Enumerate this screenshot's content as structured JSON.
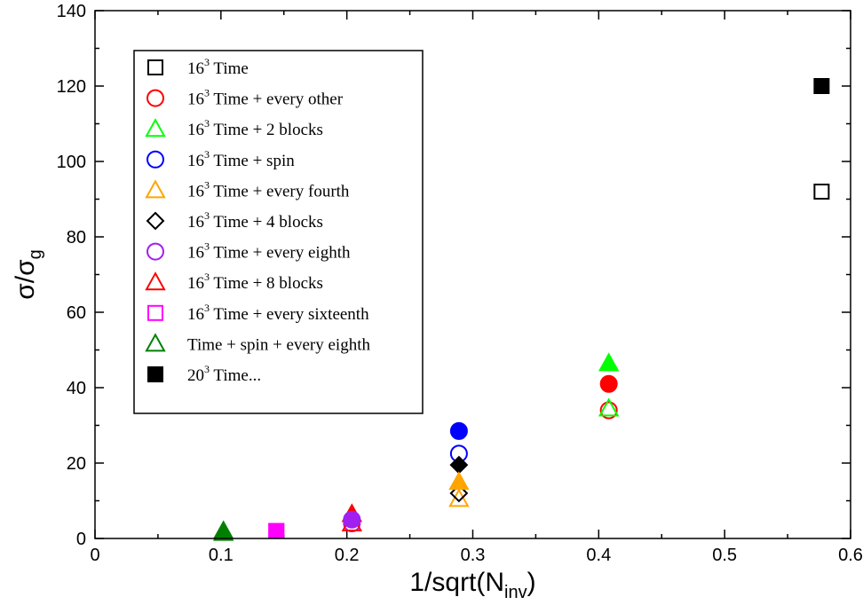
{
  "chart_data": {
    "type": "scatter",
    "title": "",
    "xlabel": "1/sqrt(N_inv)",
    "ylabel": "σ/σ_g",
    "xlim": [
      0,
      0.6
    ],
    "ylim": [
      0,
      140
    ],
    "xticks": [
      0,
      0.1,
      0.2,
      0.3,
      0.4,
      0.5,
      0.6
    ],
    "yticks": [
      0,
      20,
      40,
      60,
      80,
      100,
      120,
      140
    ],
    "xtick_labels": [
      "0",
      "0.1",
      "0.2",
      "0.3",
      "0.4",
      "0.5",
      "0.6"
    ],
    "ytick_labels": [
      "0",
      "20",
      "40",
      "60",
      "80",
      "100",
      "120",
      "140"
    ],
    "xlabel_parts": {
      "main": "1/sqrt(N",
      "sub": "inv",
      "end": ")"
    },
    "ylabel_parts": {
      "main": "σ/σ",
      "sub": "g"
    },
    "grid": false,
    "legend_position": "top-left",
    "legend": [
      {
        "pre": "16",
        "sup": "3",
        "post": " Time",
        "marker": "square",
        "color": "#000000"
      },
      {
        "pre": "16",
        "sup": "3",
        "post": " Time + every other",
        "marker": "circle",
        "color": "#ff0000"
      },
      {
        "pre": "16",
        "sup": "3",
        "post": " Time + 2 blocks",
        "marker": "triangle",
        "color": "#00ff00"
      },
      {
        "pre": "16",
        "sup": "3",
        "post": " Time + spin",
        "marker": "circle",
        "color": "#0000ff"
      },
      {
        "pre": "16",
        "sup": "3",
        "post": " Time + every fourth",
        "marker": "triangle",
        "color": "#ffa500"
      },
      {
        "pre": "16",
        "sup": "3",
        "post": " Time + 4 blocks",
        "marker": "diamond",
        "color": "#000000"
      },
      {
        "pre": "16",
        "sup": "3",
        "post": " Time + every eighth",
        "marker": "circle",
        "color": "#a020f0"
      },
      {
        "pre": "16",
        "sup": "3",
        "post": " Time + 8 blocks",
        "marker": "triangle",
        "color": "#ff0000"
      },
      {
        "pre": "16",
        "sup": "3",
        "post": " Time + every sixteenth",
        "marker": "square",
        "color": "#ff00ff"
      },
      {
        "pre": "",
        "sup": "",
        "post": "Time + spin + every eighth",
        "marker": "triangle",
        "color": "#008000"
      },
      {
        "pre": "20",
        "sup": "3",
        "post": " Time...",
        "marker": "square-filled",
        "color": "#000000"
      }
    ],
    "series": [
      {
        "name": "16^3 Time",
        "marker": "square",
        "color": "#000000",
        "filled": false,
        "points": [
          [
            0.577,
            92
          ]
        ]
      },
      {
        "name": "16^3 Time + every other",
        "marker": "circle",
        "color": "#ff0000",
        "filled": false,
        "points": [
          [
            0.408,
            34
          ]
        ]
      },
      {
        "name": "16^3 Time + 2 blocks",
        "marker": "triangle",
        "color": "#00ff00",
        "filled": false,
        "points": [
          [
            0.408,
            34.5
          ]
        ]
      },
      {
        "name": "16^3 Time + spin",
        "marker": "circle",
        "color": "#0000ff",
        "filled": false,
        "points": [
          [
            0.289,
            22.5
          ]
        ]
      },
      {
        "name": "16^3 Time + every fourth",
        "marker": "triangle",
        "color": "#ffa500",
        "filled": false,
        "points": [
          [
            0.289,
            10.5
          ]
        ]
      },
      {
        "name": "16^3 Time + 4 blocks",
        "marker": "diamond",
        "color": "#000000",
        "filled": false,
        "points": [
          [
            0.289,
            12
          ]
        ]
      },
      {
        "name": "16^3 Time + every eighth",
        "marker": "circle",
        "color": "#a020f0",
        "filled": false,
        "points": [
          [
            0.204,
            4
          ]
        ]
      },
      {
        "name": "16^3 Time + 8 blocks",
        "marker": "triangle",
        "color": "#ff0000",
        "filled": false,
        "points": [
          [
            0.204,
            4
          ]
        ]
      },
      {
        "name": "16^3 Time + every sixteenth",
        "marker": "square",
        "color": "#ff00ff",
        "filled": false,
        "points": [
          [
            0.144,
            2
          ]
        ]
      },
      {
        "name": "Time + spin + every eighth",
        "marker": "triangle",
        "color": "#008000",
        "filled": false,
        "points": [
          [
            0.102,
            1.5
          ]
        ]
      },
      {
        "name": "20^3 Time (filled square)",
        "marker": "square",
        "color": "#000000",
        "filled": true,
        "points": [
          [
            0.577,
            120
          ]
        ]
      },
      {
        "name": "every other (filled)",
        "marker": "circle",
        "color": "#ff0000",
        "filled": true,
        "points": [
          [
            0.408,
            41
          ]
        ]
      },
      {
        "name": "2 blocks (filled)",
        "marker": "triangle",
        "color": "#00ff00",
        "filled": true,
        "points": [
          [
            0.408,
            46.5
          ]
        ]
      },
      {
        "name": "spin (filled)",
        "marker": "circle",
        "color": "#0000ff",
        "filled": true,
        "points": [
          [
            0.289,
            28.5
          ]
        ]
      },
      {
        "name": "4 blocks (filled)",
        "marker": "diamond",
        "color": "#000000",
        "filled": true,
        "points": [
          [
            0.289,
            19.5
          ]
        ]
      },
      {
        "name": "every fourth (filled)",
        "marker": "triangle",
        "color": "#ffa500",
        "filled": true,
        "points": [
          [
            0.289,
            15
          ]
        ]
      },
      {
        "name": "8 blocks (filled)",
        "marker": "triangle",
        "color": "#ff0000",
        "filled": true,
        "points": [
          [
            0.204,
            6.5
          ]
        ]
      },
      {
        "name": "every eighth (filled)",
        "marker": "circle",
        "color": "#a020f0",
        "filled": true,
        "points": [
          [
            0.204,
            5
          ]
        ]
      },
      {
        "name": "every sixteenth (filled)",
        "marker": "square",
        "color": "#ff00ff",
        "filled": true,
        "points": [
          [
            0.144,
            2
          ]
        ]
      },
      {
        "name": "Time + spin + every eighth (filled)",
        "marker": "triangle",
        "color": "#008000",
        "filled": true,
        "points": [
          [
            0.102,
            2
          ]
        ]
      }
    ]
  }
}
